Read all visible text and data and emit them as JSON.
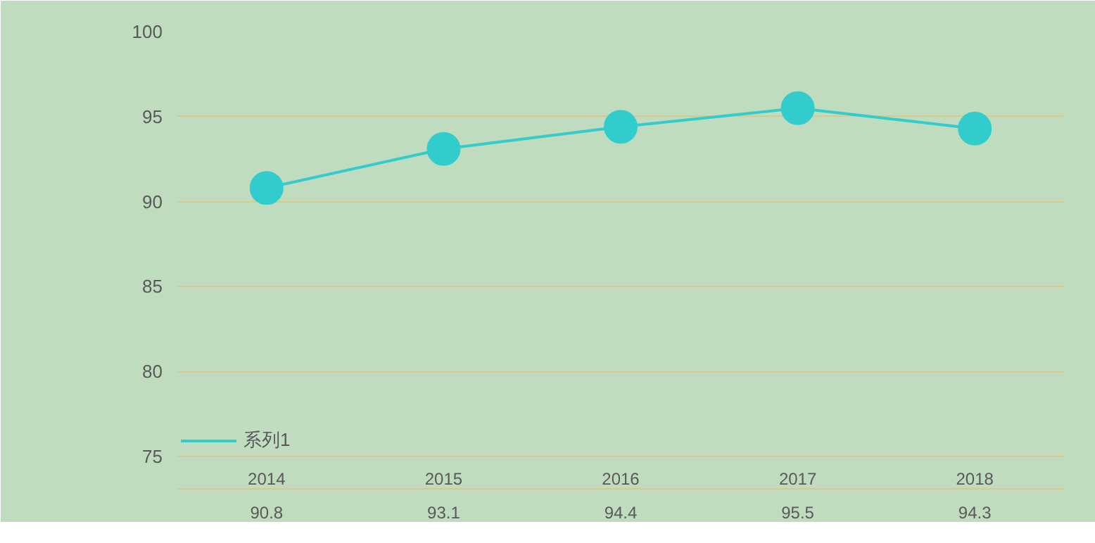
{
  "chart_data": {
    "type": "line",
    "categories": [
      "2014",
      "2015",
      "2016",
      "2017",
      "2018"
    ],
    "series": [
      {
        "name": "系列1",
        "color": "#33cccc",
        "values": [
          90.8,
          93.1,
          94.4,
          95.5,
          94.3
        ]
      }
    ],
    "ylim": [
      75,
      100
    ],
    "yticks": [
      75,
      80,
      85,
      90,
      95,
      100
    ],
    "grid": "y",
    "marker": "circle",
    "line_style": "solid",
    "data_labels": true,
    "legend": "bottom left"
  }
}
